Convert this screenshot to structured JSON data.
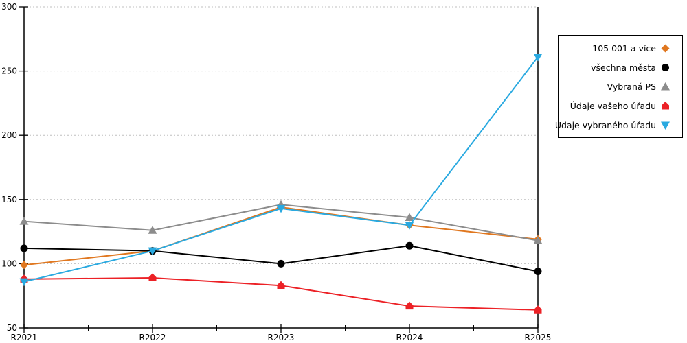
{
  "page": {
    "background": "#ffffff",
    "title": ""
  },
  "chart_data": {
    "type": "line",
    "title": "",
    "xlabel": "",
    "ylabel": "",
    "categories": [
      "R2021",
      "R2022",
      "R2023",
      "R2024",
      "R2025"
    ],
    "series": [
      {
        "name": "105 001 a více",
        "marker": "diamond",
        "color": "#E0771F",
        "values": [
          99,
          110,
          144,
          130,
          119
        ]
      },
      {
        "name": "všechna města",
        "marker": "circle",
        "color": "#000000",
        "values": [
          112,
          110,
          100,
          114,
          94
        ]
      },
      {
        "name": "Vybraná PS",
        "marker": "triangle-up",
        "color": "#8C8C8C",
        "values": [
          133,
          126,
          146,
          136,
          118
        ]
      },
      {
        "name": "Údaje vašeho úřadu",
        "marker": "pentagon",
        "color": "#EC2126",
        "values": [
          88,
          89,
          83,
          67,
          64
        ]
      },
      {
        "name": "Údaje vybraného úřadu",
        "marker": "triangle-down",
        "color": "#29A9E0",
        "values": [
          86,
          110,
          143,
          130,
          261
        ]
      }
    ],
    "ylim": [
      50,
      300
    ],
    "yticks": [
      50,
      100,
      150,
      200,
      250,
      300
    ],
    "grid": "horizontal-dotted",
    "gridline_color": "#BFBFBF",
    "axis_color": "#000000",
    "right_boundary_line_at": "R2025",
    "legend_position": "outside-top-right",
    "legend_border_color": "#000000",
    "legend_marker_side": "right-of-label"
  }
}
